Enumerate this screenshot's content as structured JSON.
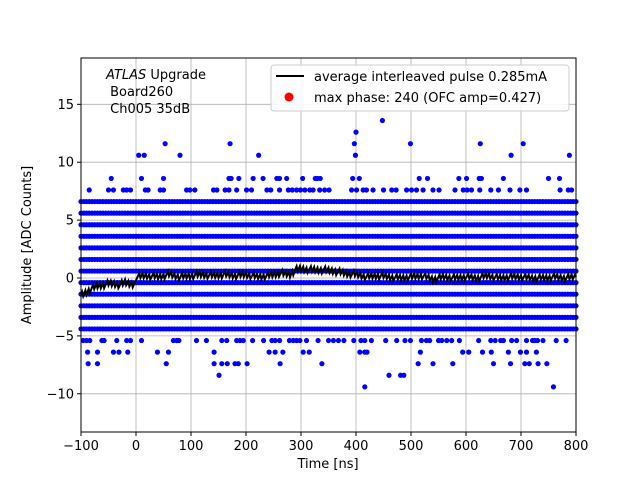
{
  "chart_data": {
    "type": "scatter",
    "xlabel": "Time [ns]",
    "ylabel": "Amplitude [ADC Counts]",
    "xlim": [
      -100,
      800
    ],
    "ylim": [
      -13.3,
      19.0
    ],
    "xticks": [
      -100,
      0,
      100,
      200,
      300,
      400,
      500,
      600,
      700,
      800
    ],
    "yticks": [
      -10,
      -5,
      0,
      5,
      10,
      15
    ],
    "grid": true,
    "legend_placement": "top-right",
    "annotation": {
      "italic": "ATLAS",
      "line1_rest": " Upgrade",
      "line2": " Board260",
      "line3": " Ch005 35dB"
    },
    "legend": [
      {
        "label": "average interleaved pulse 0.285mA",
        "marker": "line",
        "color": "#000000"
      },
      {
        "label": "max phase: 240 (OFC amp=0.427)",
        "marker": "dot",
        "color": "#ff0000"
      }
    ],
    "samples": {
      "color": "#0000ff",
      "dense_levels": [
        -4.4,
        -3.4,
        -2.4,
        -1.4,
        -0.4,
        0.6,
        1.6,
        2.6,
        3.6,
        4.6,
        5.6,
        6.6
      ],
      "sparse_levels": [
        {
          "y": 13.6,
          "x": [
            448
          ]
        },
        {
          "y": 12.6,
          "x": [
            400
          ]
        },
        {
          "y": 11.6,
          "x": [
            53,
            171,
            397,
            499,
            626,
            704
          ]
        },
        {
          "y": 10.6,
          "x": [
            5,
            15,
            80,
            223,
            399,
            682,
            788
          ]
        },
        {
          "y": 8.6,
          "x": [
            -45,
            10,
            50,
            169,
            173,
            187,
            213,
            231,
            256,
            261,
            274,
            303,
            326,
            330,
            335,
            394,
            406,
            515,
            530,
            587,
            601,
            624,
            628,
            668,
            750,
            770
          ]
        },
        {
          "y": 7.6,
          "x": [
            -85,
            -50,
            -41,
            -23,
            -17,
            -10,
            17,
            22,
            44,
            50,
            92,
            98,
            107,
            141,
            147,
            162,
            169,
            183,
            201,
            210,
            238,
            245,
            261,
            277,
            284,
            292,
            299,
            307,
            316,
            322,
            334,
            343,
            351,
            392,
            401,
            413,
            419,
            431,
            450,
            465,
            473,
            492,
            501,
            510,
            522,
            540,
            551,
            580,
            595,
            602,
            610,
            625,
            645,
            659,
            680,
            698,
            710,
            771,
            786,
            792
          ]
        },
        {
          "y": -5.4,
          "x": [
            -96,
            -90,
            -84,
            -62,
            -58,
            -35,
            -17,
            -10,
            10,
            68,
            74,
            78,
            110,
            128,
            156,
            165,
            183,
            189,
            195,
            212,
            232,
            247,
            253,
            261,
            279,
            286,
            292,
            298,
            310,
            331,
            350,
            359,
            368,
            378,
            396,
            409,
            416,
            428,
            454,
            474,
            489,
            499,
            519,
            528,
            534,
            550,
            556,
            565,
            574,
            588,
            623,
            645,
            653,
            663,
            668,
            683,
            692,
            710,
            721,
            725,
            730,
            740,
            764,
            782
          ]
        },
        {
          "y": -6.4,
          "x": [
            -88,
            -70,
            -41,
            -31,
            -15,
            39,
            59,
            142,
            242,
            253,
            267,
            304,
            315,
            407,
            416,
            420,
            517,
            594,
            605,
            630,
            646,
            677,
            699,
            710,
            728
          ]
        },
        {
          "y": -7.4,
          "x": [
            -87,
            -70,
            55,
            142,
            156,
            166,
            180,
            186,
            202,
            262,
            338,
            513,
            540,
            576,
            650,
            681,
            707,
            715,
            731,
            747
          ]
        },
        {
          "y": -8.4,
          "x": [
            151,
            460,
            481,
            487
          ]
        },
        {
          "y": -9.4,
          "x": [
            416,
            759
          ]
        }
      ]
    },
    "average_pulse": {
      "color": "#000000",
      "x": [
        -100,
        -90,
        -80,
        -70,
        -60,
        -50,
        -40,
        -30,
        -20,
        -10,
        0,
        20,
        40,
        60,
        80,
        100,
        120,
        140,
        160,
        180,
        200,
        220,
        240,
        260,
        280,
        290,
        300,
        320,
        340,
        360,
        380,
        400,
        420,
        440,
        460,
        480,
        500,
        520,
        540,
        560,
        580,
        600,
        620,
        640,
        660,
        680,
        700,
        720,
        740,
        760,
        780,
        800
      ],
      "y": [
        -0.9,
        -0.6,
        -0.3,
        -0.1,
        0.0,
        0.1,
        0.1,
        0.0,
        0.2,
        0.1,
        0.1,
        0.2,
        0.1,
        0.3,
        0.1,
        0.2,
        0.3,
        0.2,
        0.3,
        0.2,
        0.3,
        0.1,
        0.2,
        0.4,
        0.3,
        0.7,
        0.8,
        0.7,
        0.7,
        0.6,
        0.4,
        0.3,
        0.1,
        0.2,
        0.1,
        0.0,
        0.1,
        0.2,
        -0.1,
        0.1,
        0.0,
        0.1,
        0.0,
        0.2,
        0.0,
        0.1,
        0.1,
        0.0,
        0.0,
        0.1,
        0.0,
        0.1
      ]
    }
  }
}
